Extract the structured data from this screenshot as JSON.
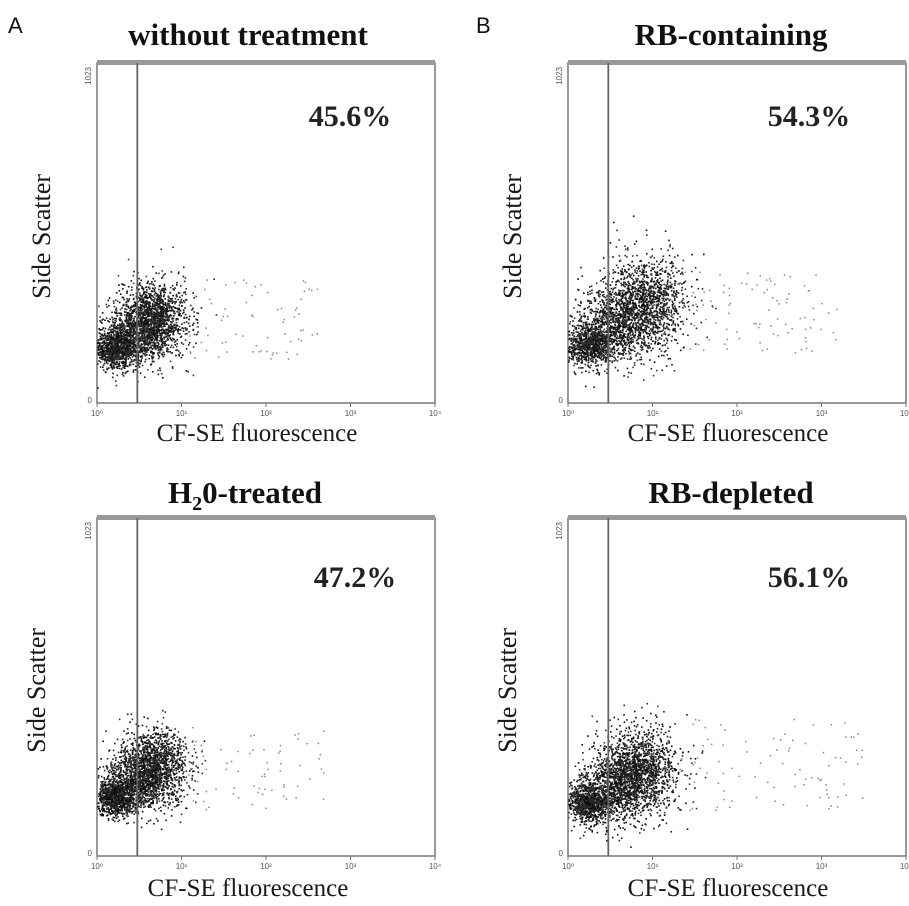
{
  "panel_labels": [
    "A",
    "B"
  ],
  "chart_data": [
    {
      "type": "scatter",
      "title": "without treatment",
      "title_subscript": "",
      "title_rest": "",
      "xlabel": "CF-SE fluorescence",
      "ylabel": "Side Scatter",
      "x_scale": "log",
      "xlim": [
        1,
        10000
      ],
      "x_tick_labels": [
        "10⁰",
        "10¹",
        "10²",
        "10³",
        "10⁴"
      ],
      "ylim": [
        0,
        1023
      ],
      "y_tick_labels": [
        "0",
        "1023"
      ],
      "gate_x": 3.0,
      "gated_percent": "45.6%",
      "clusters": [
        {
          "cx": 1.6,
          "cy": 165,
          "sx": 0.13,
          "sy": 28,
          "n": 900
        },
        {
          "cx": 4.5,
          "cy": 255,
          "sx": 0.2,
          "sy": 55,
          "n": 1500
        },
        {
          "cx": 2.6,
          "cy": 205,
          "sx": 0.18,
          "sy": 45,
          "n": 700
        }
      ],
      "sparse": {
        "xrange": [
          12,
          400
        ],
        "yrange": [
          130,
          380
        ],
        "n": 70
      }
    },
    {
      "type": "scatter",
      "title": "RB-containing",
      "title_subscript": "",
      "title_rest": "",
      "xlabel": "CF-SE fluorescence",
      "ylabel": "Side Scatter",
      "x_scale": "log",
      "xlim": [
        1,
        10000
      ],
      "x_tick_labels": [
        "10⁰",
        "10¹",
        "10²",
        "10³",
        "10⁴"
      ],
      "ylim": [
        0,
        1023
      ],
      "y_tick_labels": [
        "0",
        "1023"
      ],
      "gate_x": 3.0,
      "gated_percent": "54.3%",
      "clusters": [
        {
          "cx": 1.7,
          "cy": 175,
          "sx": 0.15,
          "sy": 30,
          "n": 800
        },
        {
          "cx": 7.5,
          "cy": 300,
          "sx": 0.25,
          "sy": 70,
          "n": 1500
        },
        {
          "cx": 3.2,
          "cy": 230,
          "sx": 0.22,
          "sy": 55,
          "n": 800
        }
      ],
      "sparse": {
        "xrange": [
          20,
          1500
        ],
        "yrange": [
          150,
          400
        ],
        "n": 90
      }
    },
    {
      "type": "scatter",
      "title": "H",
      "title_subscript": "2",
      "title_rest": "0-treated",
      "xlabel": "CF-SE fluorescence",
      "ylabel": "Side Scatter",
      "x_scale": "log",
      "xlim": [
        1,
        10000
      ],
      "x_tick_labels": [
        "10⁰",
        "10¹",
        "10²",
        "10³",
        "10⁴"
      ],
      "ylim": [
        0,
        1023
      ],
      "y_tick_labels": [
        "0",
        "1023"
      ],
      "gate_x": 3.0,
      "gated_percent": "47.2%",
      "clusters": [
        {
          "cx": 1.6,
          "cy": 180,
          "sx": 0.12,
          "sy": 28,
          "n": 900
        },
        {
          "cx": 4.6,
          "cy": 270,
          "sx": 0.2,
          "sy": 55,
          "n": 1500
        },
        {
          "cx": 2.7,
          "cy": 220,
          "sx": 0.18,
          "sy": 45,
          "n": 700
        }
      ],
      "sparse": {
        "xrange": [
          12,
          500
        ],
        "yrange": [
          140,
          400
        ],
        "n": 70
      }
    },
    {
      "type": "scatter",
      "title": "RB-depleted",
      "title_subscript": "",
      "title_rest": "",
      "xlabel": "CF-SE fluorescence",
      "ylabel": "Side Scatter",
      "x_scale": "log",
      "xlim": [
        1,
        10000
      ],
      "x_tick_labels": [
        "10⁰",
        "10¹",
        "10²",
        "10³",
        "10⁴"
      ],
      "ylim": [
        0,
        1023
      ],
      "y_tick_labels": [
        "0",
        "1023"
      ],
      "gate_x": 3.0,
      "gated_percent": "56.1%",
      "clusters": [
        {
          "cx": 1.7,
          "cy": 160,
          "sx": 0.14,
          "sy": 28,
          "n": 800
        },
        {
          "cx": 6.5,
          "cy": 260,
          "sx": 0.24,
          "sy": 65,
          "n": 1600
        },
        {
          "cx": 3.3,
          "cy": 200,
          "sx": 0.22,
          "sy": 50,
          "n": 800
        }
      ],
      "sparse": {
        "xrange": [
          20,
          3000
        ],
        "yrange": [
          140,
          420
        ],
        "n": 90
      }
    }
  ]
}
